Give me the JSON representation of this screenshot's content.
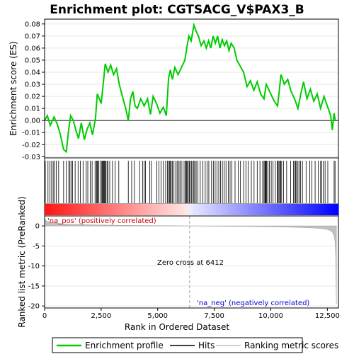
{
  "chart_data": [
    {
      "panel": "enrichment",
      "type": "line",
      "title": "Enrichment plot: CGTSACG_V$PAX3_B",
      "ylabel": "Enrichment score (ES)",
      "xlim": [
        0,
        12990
      ],
      "ylim": [
        -0.031,
        0.084
      ],
      "yticks": [
        -0.03,
        -0.02,
        -0.01,
        0.0,
        0.01,
        0.02,
        0.03,
        0.04,
        0.05,
        0.06,
        0.07,
        0.08
      ],
      "ytick_labels": [
        "-0.03",
        "-0.02",
        "-0.01",
        "0.00",
        "0.01",
        "0.02",
        "0.03",
        "0.04",
        "0.05",
        "0.06",
        "0.07",
        "0.08"
      ],
      "grid": true,
      "line_color": "#00cc00",
      "series": [
        {
          "x": [
            0,
            120,
            250,
            420,
            560,
            700,
            840,
            960,
            1050,
            1150,
            1270,
            1380,
            1500,
            1620,
            1760,
            1880,
            2000,
            2120,
            2250,
            2330,
            2420,
            2500,
            2600,
            2680,
            2800,
            2920,
            3050,
            3180,
            3300,
            3440,
            3600,
            3700,
            3800,
            3900,
            4000,
            4100,
            4250,
            4400,
            4550,
            4680,
            4800,
            4950,
            5100,
            5250,
            5380,
            5480,
            5560,
            5650,
            5760,
            5900,
            6050,
            6200,
            6300,
            6380,
            6480,
            6600,
            6700,
            6800,
            6920,
            7050,
            7150,
            7250,
            7350,
            7450,
            7550,
            7650,
            7750,
            7850,
            7950,
            8050,
            8150,
            8250,
            8380,
            8500,
            8650,
            8800,
            8950,
            9100,
            9250,
            9400,
            9550,
            9700,
            9800,
            9900,
            10000,
            10150,
            10300,
            10450,
            10600,
            10750,
            10900,
            11050,
            11200,
            11350,
            11450,
            11600,
            11750,
            11900,
            12050,
            12200,
            12350,
            12500,
            12650,
            12720,
            12800,
            12850
          ],
          "y": [
            0.0,
            0.004,
            -0.004,
            0.003,
            -0.003,
            -0.012,
            -0.024,
            -0.026,
            -0.01,
            0.004,
            0.0,
            -0.008,
            -0.015,
            -0.002,
            -0.016,
            -0.007,
            -0.002,
            -0.012,
            0.002,
            0.022,
            0.018,
            0.014,
            0.032,
            0.047,
            0.04,
            0.046,
            0.038,
            0.043,
            0.03,
            0.02,
            0.009,
            0.0,
            0.018,
            0.024,
            0.012,
            0.01,
            0.018,
            0.012,
            0.018,
            0.005,
            0.02,
            0.014,
            0.006,
            0.011,
            0.004,
            0.035,
            0.042,
            0.034,
            0.044,
            0.038,
            0.044,
            0.05,
            0.062,
            0.07,
            0.066,
            0.079,
            0.074,
            0.07,
            0.062,
            0.066,
            0.06,
            0.066,
            0.06,
            0.07,
            0.064,
            0.07,
            0.06,
            0.067,
            0.062,
            0.066,
            0.058,
            0.064,
            0.06,
            0.05,
            0.045,
            0.04,
            0.028,
            0.033,
            0.025,
            0.032,
            0.022,
            0.018,
            0.03,
            0.026,
            0.022,
            0.016,
            0.012,
            0.038,
            0.03,
            0.034,
            0.024,
            0.018,
            0.01,
            0.024,
            0.032,
            0.018,
            0.026,
            0.016,
            0.022,
            0.01,
            0.02,
            0.012,
            0.004,
            -0.008,
            0.006,
            0.0
          ]
        }
      ]
    },
    {
      "panel": "hits",
      "type": "scatter",
      "xlim": [
        0,
        12990
      ],
      "hit_positions": [
        30,
        150,
        240,
        310,
        380,
        440,
        520,
        620,
        840,
        960,
        1070,
        1120,
        1180,
        1240,
        1350,
        1480,
        1580,
        1700,
        1840,
        1910,
        2020,
        2100,
        2230,
        2290,
        2320,
        2350,
        2400,
        2480,
        2530,
        2560,
        2590,
        2620,
        2640,
        2670,
        2700,
        2760,
        2800,
        2880,
        3000,
        3120,
        3280,
        3700,
        3850,
        3970,
        4200,
        4330,
        4400,
        4460,
        4650,
        4720,
        4960,
        5050,
        5150,
        5250,
        5350,
        5430,
        5480,
        5520,
        5560,
        5600,
        5650,
        5720,
        5800,
        5860,
        5920,
        5980,
        6040,
        6120,
        6200,
        6240,
        6280,
        6320,
        6350,
        6400,
        6440,
        6500,
        6560,
        6600,
        6640,
        6700,
        6780,
        6880,
        7000,
        7100,
        7180,
        7260,
        7380,
        7460,
        7540,
        7620,
        7700,
        7780,
        7860,
        7940,
        8020,
        8120,
        8200,
        8280,
        8420,
        8560,
        8660,
        8800,
        8900,
        9000,
        9140,
        9260,
        9400,
        9520,
        9640,
        9700,
        9740,
        9760,
        9790,
        9820,
        9870,
        9940,
        10020,
        10100,
        10200,
        10280,
        10320,
        10360,
        10400,
        10440,
        10480,
        10560,
        10700,
        10880,
        11000,
        11060,
        11100,
        11140,
        11200,
        11260,
        11320,
        11400,
        11560,
        11720,
        11820,
        11960,
        12100,
        12200,
        12250,
        12320,
        12400,
        12520,
        12800,
        12840
      ]
    },
    {
      "panel": "ranking",
      "type": "area",
      "xlabel": "Rank in Ordered Dataset",
      "ylabel": "Ranked list metric (PreRanked)",
      "xlim": [
        0,
        12990
      ],
      "ylim": [
        -20.5,
        2.5
      ],
      "xticks": [
        0,
        2500,
        5000,
        7500,
        10000,
        12500
      ],
      "xtick_labels": [
        "0",
        "2,500",
        "5,000",
        "7,500",
        "10,000",
        "12,500"
      ],
      "yticks": [
        0,
        -5,
        -10,
        -15,
        -20
      ],
      "ytick_labels": [
        "0",
        "-5",
        "-10",
        "-15",
        "-20"
      ],
      "x": [
        0,
        30,
        100,
        250,
        500,
        1000,
        2000,
        3000,
        4000,
        5000,
        6000,
        6412,
        7000,
        8000,
        9000,
        10000,
        11000,
        11500,
        12000,
        12300,
        12500,
        12650,
        12750,
        12800,
        12840,
        12870,
        12900
      ],
      "values": [
        2.1,
        1.6,
        1.2,
        0.9,
        0.7,
        0.45,
        0.28,
        0.18,
        0.12,
        0.07,
        0.03,
        0.0,
        -0.03,
        -0.08,
        -0.14,
        -0.22,
        -0.33,
        -0.42,
        -0.55,
        -0.7,
        -0.9,
        -1.2,
        -1.8,
        -2.6,
        -4.0,
        -8.0,
        -19.5
      ],
      "annotations": {
        "pos_label": "'na_pos' (positively correlated)",
        "neg_label": "'na_neg' (negatively correlated)",
        "zero_cross_label": "Zero cross at 6412",
        "zero_cross": 6412
      }
    }
  ],
  "legend": {
    "placement": "bottom",
    "items": [
      {
        "label": "Enrichment profile",
        "color": "#00cc00"
      },
      {
        "label": "Hits",
        "color": "#000000"
      },
      {
        "label": "Ranking metric scores",
        "color": "#c0c0c0"
      }
    ]
  },
  "colors": {
    "pos_annotation": "#cc0000",
    "neg_annotation": "#0000cc",
    "ranking_fill": "#c0c0c0",
    "zero_line": "#a0a0a0"
  }
}
